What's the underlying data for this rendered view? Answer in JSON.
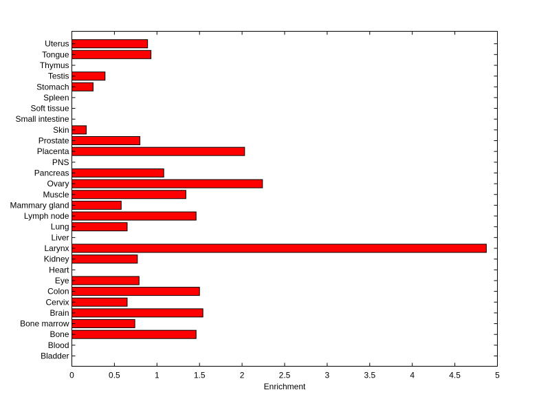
{
  "chart_data": {
    "type": "bar",
    "orientation": "horizontal",
    "title": "",
    "xlabel": "Enrichment",
    "ylabel": "",
    "xlim": [
      0,
      5
    ],
    "x_ticks": [
      "0",
      "0.5",
      "1",
      "1.5",
      "2",
      "2.5",
      "3",
      "3.5",
      "4",
      "4.5",
      "5"
    ],
    "grid": false,
    "bar_color": "#ff0000",
    "categories": [
      "Bladder",
      "Blood",
      "Bone",
      "Bone marrow",
      "Brain",
      "Cervix",
      "Colon",
      "Eye",
      "Heart",
      "Kidney",
      "Larynx",
      "Liver",
      "Lung",
      "Lymph node",
      "Mammary gland",
      "Muscle",
      "Ovary",
      "Pancreas",
      "PNS",
      "Placenta",
      "Prostate",
      "Skin",
      "Small intestine",
      "Soft tissue",
      "Spleen",
      "Stomach",
      "Testis",
      "Thymus",
      "Tongue",
      "Uterus"
    ],
    "values": [
      0,
      0,
      1.46,
      0.74,
      1.54,
      0.65,
      1.5,
      0.79,
      0,
      0.77,
      4.87,
      0,
      0.65,
      1.46,
      0.58,
      1.34,
      2.24,
      1.08,
      0,
      2.03,
      0.8,
      0.17,
      0,
      0,
      0,
      0.25,
      0.39,
      0,
      0.93,
      0.89
    ]
  }
}
